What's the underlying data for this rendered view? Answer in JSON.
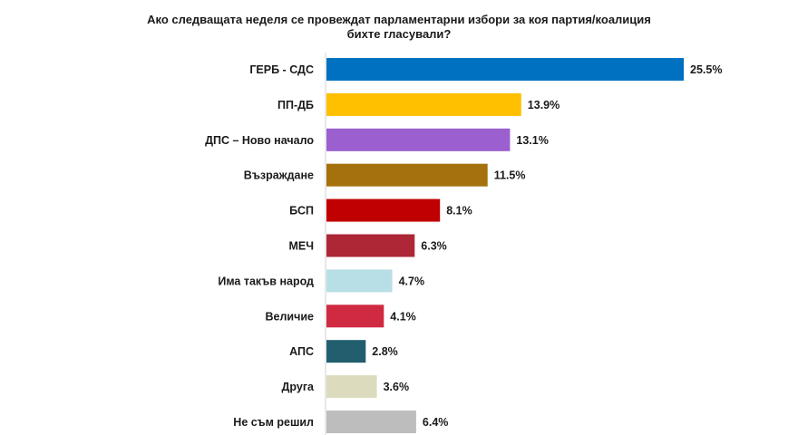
{
  "chart_data": {
    "type": "bar",
    "orientation": "horizontal",
    "title_lines": [
      "Ако следващата неделя се провеждат парламентарни избори за коя партия/коалиция",
      "бихте гласували?"
    ],
    "categories": [
      "ГЕРБ - СДС",
      "ПП-ДБ",
      "ДПС – Ново начало",
      "Възраждане",
      "БСП",
      "МЕЧ",
      "Има такъв народ",
      "Величие",
      "АПС",
      "Друга",
      "Не съм решил"
    ],
    "values": [
      25.5,
      13.9,
      13.1,
      11.5,
      8.1,
      6.3,
      4.7,
      4.1,
      2.8,
      3.6,
      6.4
    ],
    "value_labels": [
      "25.5%",
      "13.9%",
      "13.1%",
      "11.5%",
      "8.1%",
      "6.3%",
      "4.7%",
      "4.1%",
      "2.8%",
      "3.6%",
      "6.4%"
    ],
    "colors": [
      "#0070c0",
      "#ffc000",
      "#9b5fcf",
      "#a5710c",
      "#c00000",
      "#ad2737",
      "#b9dfe6",
      "#cf2a41",
      "#215e6e",
      "#dcdbbd",
      "#bdbdbd"
    ],
    "xlim": [
      0,
      25.5
    ],
    "grid": false,
    "legend": "none"
  }
}
